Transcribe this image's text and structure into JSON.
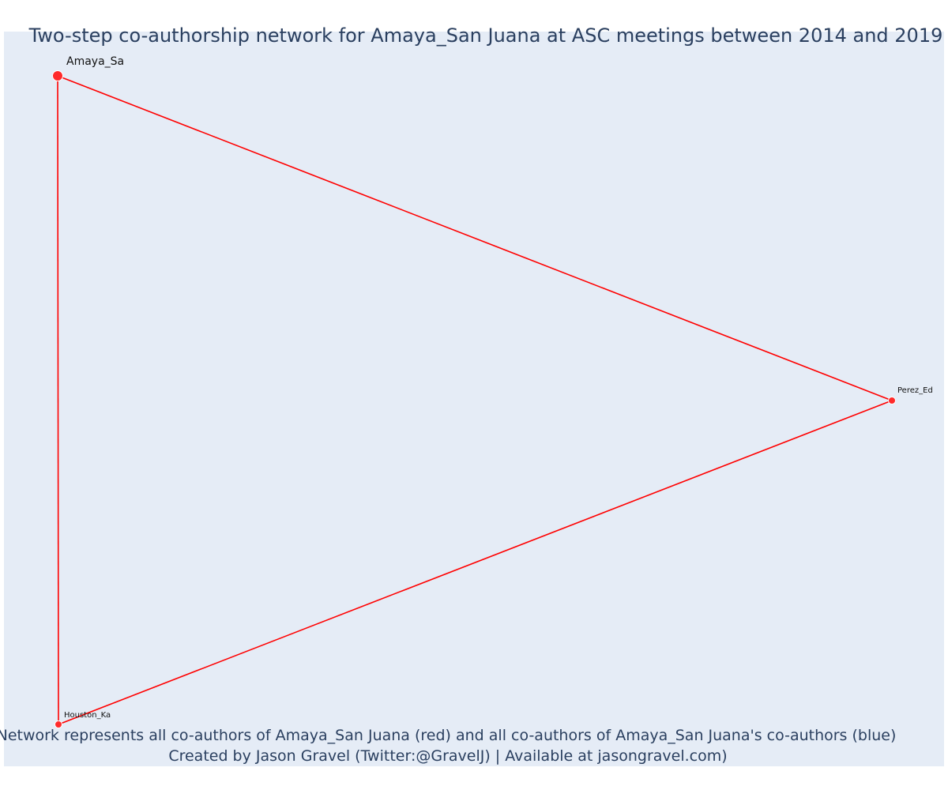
{
  "title": "Two-step co-authorship network for Amaya_San Juana at ASC meetings between 2014 and 2019",
  "captions": {
    "line1": "Network represents all co-authors of Amaya_San Juana (red) and all co-authors of Amaya_San Juana's co-authors (blue)",
    "line2": "Created by Jason Gravel (Twitter:@GravelJ) | Available at jasongravel.com)"
  },
  "colors": {
    "plot_background": "#e5ecf6",
    "edge": "#ff0000",
    "node_fill": "#ff2a2a",
    "node_outline": "#ffffff",
    "text": "#2a3f5f"
  },
  "network": {
    "nodes": [
      {
        "id": "amaya",
        "label": "Amaya_Sa",
        "role": "focal"
      },
      {
        "id": "perez",
        "label": "Perez_Ed",
        "role": "co-author"
      },
      {
        "id": "houston",
        "label": "Houston_Ka",
        "role": "co-author"
      }
    ],
    "edges": [
      {
        "source": "amaya",
        "target": "perez"
      },
      {
        "source": "amaya",
        "target": "houston"
      },
      {
        "source": "perez",
        "target": "houston"
      }
    ]
  }
}
